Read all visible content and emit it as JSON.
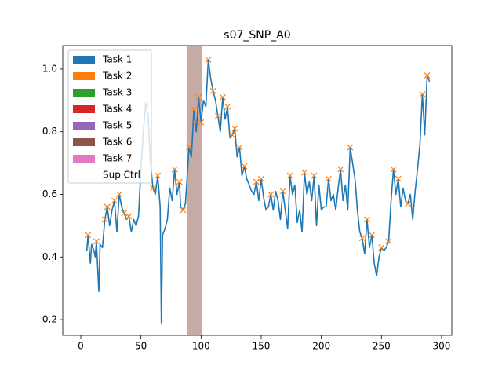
{
  "chart_data": {
    "type": "line",
    "title": "s07_SNP_A0",
    "xlim": [
      -15,
      308.5
    ],
    "ylim": [
      0.15,
      1.075
    ],
    "xticks": [
      0,
      50,
      100,
      150,
      200,
      250,
      300
    ],
    "yticks": [
      0.2,
      0.4,
      0.6,
      0.8,
      {
        "value": 1.0,
        "label": "1.0"
      }
    ],
    "legend_position": "upper left",
    "legend": [
      {
        "name": "Task 1",
        "color": "#1f77b4"
      },
      {
        "name": "Task 2",
        "color": "#ff7f0e"
      },
      {
        "name": "Task 3",
        "color": "#2ca02c"
      },
      {
        "name": "Task 4",
        "color": "#d62728"
      },
      {
        "name": "Task 5",
        "color": "#9467bd"
      },
      {
        "name": "Task 6",
        "color": "#8c564b"
      },
      {
        "name": "Task 7",
        "color": "#e377c2"
      },
      {
        "name": "Sup Ctrl",
        "color": "none"
      }
    ],
    "span": {
      "x": [
        88,
        101
      ],
      "color": "#8c564b",
      "alpha": 0.5
    },
    "series": [
      {
        "color": "#1f77b4",
        "x": [
          5,
          6,
          8,
          9,
          11,
          12,
          13,
          14,
          15,
          16,
          18,
          20,
          22,
          24,
          26,
          28,
          30,
          32,
          34,
          36,
          38,
          40,
          42,
          44,
          46,
          48,
          50,
          52,
          54,
          56,
          58,
          60,
          62,
          64,
          66,
          67,
          68,
          70,
          72,
          74,
          76,
          78,
          80,
          82,
          83,
          85,
          87,
          90,
          92,
          94,
          96,
          98,
          100,
          102,
          104,
          106,
          108,
          110,
          112,
          114,
          116,
          118,
          120,
          122,
          124,
          126,
          128,
          130,
          132,
          134,
          136,
          138,
          140,
          142,
          144,
          146,
          148,
          150,
          152,
          154,
          156,
          158,
          160,
          162,
          164,
          166,
          168,
          170,
          172,
          174,
          176,
          178,
          180,
          182,
          184,
          186,
          188,
          190,
          192,
          194,
          196,
          198,
          200,
          202,
          204,
          206,
          208,
          210,
          212,
          214,
          216,
          218,
          220,
          222,
          224,
          226,
          228,
          230,
          232,
          234,
          236,
          238,
          240,
          242,
          244,
          246,
          248,
          250,
          252,
          254,
          256,
          258,
          260,
          262,
          264,
          266,
          268,
          270,
          272,
          274,
          276,
          278,
          280,
          282,
          284,
          286,
          288,
          290
        ],
        "values": [
          0.42,
          0.47,
          0.38,
          0.44,
          0.42,
          0.4,
          0.45,
          0.37,
          0.29,
          0.44,
          0.43,
          0.52,
          0.56,
          0.5,
          0.55,
          0.58,
          0.48,
          0.6,
          0.56,
          0.54,
          0.52,
          0.53,
          0.48,
          0.52,
          0.5,
          0.53,
          0.68,
          0.8,
          0.89,
          0.85,
          0.7,
          0.62,
          0.6,
          0.66,
          0.56,
          0.19,
          0.47,
          0.49,
          0.52,
          0.62,
          0.58,
          0.68,
          0.6,
          0.64,
          0.56,
          0.55,
          0.57,
          0.75,
          0.72,
          0.87,
          0.8,
          0.91,
          0.83,
          0.9,
          0.88,
          1.03,
          0.97,
          0.93,
          0.9,
          0.85,
          0.8,
          0.91,
          0.84,
          0.88,
          0.78,
          0.79,
          0.81,
          0.72,
          0.75,
          0.66,
          0.69,
          0.65,
          0.63,
          0.61,
          0.6,
          0.64,
          0.58,
          0.65,
          0.59,
          0.55,
          0.56,
          0.6,
          0.55,
          0.61,
          0.58,
          0.52,
          0.61,
          0.55,
          0.49,
          0.66,
          0.6,
          0.63,
          0.51,
          0.55,
          0.48,
          0.67,
          0.6,
          0.64,
          0.58,
          0.66,
          0.5,
          0.63,
          0.55,
          0.56,
          0.56,
          0.65,
          0.58,
          0.6,
          0.55,
          0.62,
          0.68,
          0.58,
          0.63,
          0.55,
          0.75,
          0.7,
          0.65,
          0.55,
          0.48,
          0.46,
          0.41,
          0.52,
          0.43,
          0.47,
          0.38,
          0.34,
          0.4,
          0.43,
          0.42,
          0.43,
          0.45,
          0.58,
          0.68,
          0.6,
          0.65,
          0.56,
          0.62,
          0.58,
          0.57,
          0.6,
          0.52,
          0.61,
          0.68,
          0.76,
          0.92,
          0.79,
          0.98,
          0.96
        ]
      },
      {
        "color": "#ff7f0e",
        "marker": "x",
        "x": [
          6,
          13,
          20,
          22,
          28,
          32,
          36,
          40,
          54,
          60,
          64,
          78,
          82,
          85,
          90,
          94,
          98,
          100,
          106,
          110,
          114,
          118,
          122,
          126,
          128,
          132,
          136,
          146,
          150,
          158,
          168,
          174,
          186,
          194,
          206,
          216,
          224,
          234,
          238,
          242,
          250,
          256,
          260,
          264,
          272,
          284,
          288
        ],
        "values": [
          0.47,
          0.45,
          0.52,
          0.56,
          0.58,
          0.6,
          0.54,
          0.53,
          0.89,
          0.62,
          0.66,
          0.68,
          0.64,
          0.55,
          0.75,
          0.87,
          0.91,
          0.83,
          1.03,
          0.93,
          0.85,
          0.91,
          0.88,
          0.79,
          0.81,
          0.75,
          0.69,
          0.64,
          0.65,
          0.6,
          0.61,
          0.66,
          0.67,
          0.66,
          0.65,
          0.68,
          0.75,
          0.46,
          0.52,
          0.47,
          0.43,
          0.45,
          0.68,
          0.65,
          0.57,
          0.92,
          0.98
        ]
      }
    ]
  }
}
